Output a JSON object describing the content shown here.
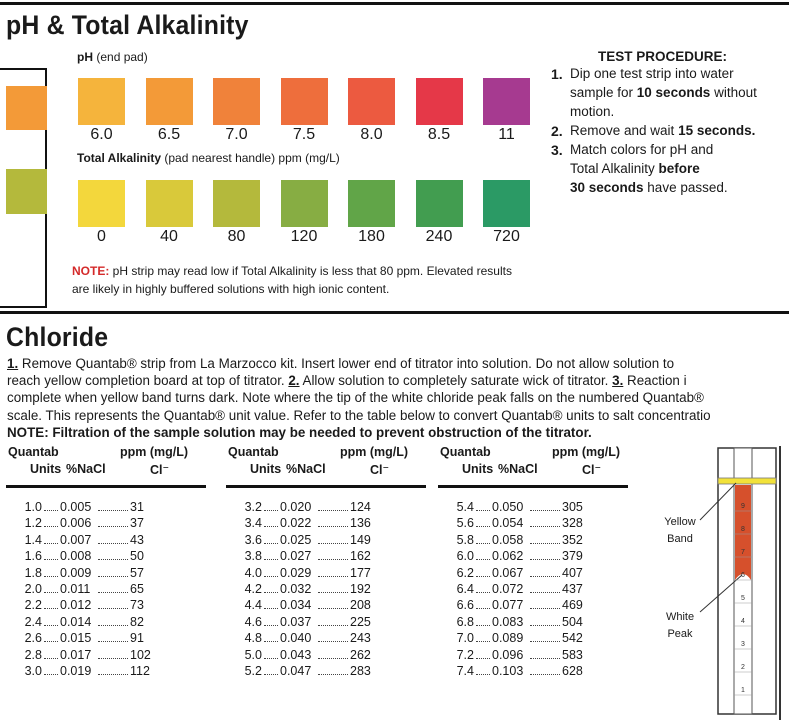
{
  "ph_section": {
    "title": "pH & Total Alkalinity",
    "ph": {
      "label": "pH",
      "label_note": "(end pad)",
      "pads": [
        {
          "label": "6.0",
          "color": "#f5b43c"
        },
        {
          "label": "6.5",
          "color": "#f39a38"
        },
        {
          "label": "7.0",
          "color": "#f0823a"
        },
        {
          "label": "7.5",
          "color": "#ee6e3c"
        },
        {
          "label": "8.0",
          "color": "#ec5a40"
        },
        {
          "label": "8.5",
          "color": "#e53848"
        },
        {
          "label": "11",
          "color": "#a63a90"
        }
      ]
    },
    "alkalinity": {
      "label": "Total Alkalinity",
      "label_note": "(pad nearest handle) ppm (mg/L)",
      "pads": [
        {
          "label": "0",
          "color": "#f3d73c"
        },
        {
          "label": "40",
          "color": "#d9c93a"
        },
        {
          "label": "80",
          "color": "#b4b93c"
        },
        {
          "label": "120",
          "color": "#87ad43"
        },
        {
          "label": "180",
          "color": "#61a548"
        },
        {
          "label": "240",
          "color": "#429d50"
        },
        {
          "label": "720",
          "color": "#2b9a65"
        }
      ]
    },
    "note": [
      [
        {
          "text": "NOTE:",
          "b": true,
          "red": true
        },
        {
          "text": " pH strip may read low if Total Alkalinity is less that 80 ppm. Elevated results"
        }
      ],
      [
        {
          "text": "are likely in highly buffered solutions with high ionic content."
        }
      ]
    ]
  },
  "test_procedure": {
    "heading": "TEST PROCEDURE:",
    "steps": [
      {
        "number": "1.",
        "lines": [
          [
            {
              "text": "Dip one test strip into water"
            }
          ],
          [
            {
              "text": "sample for "
            },
            {
              "text": "10 seconds",
              "b": true
            },
            {
              "text": " without"
            }
          ],
          [
            {
              "text": "motion."
            }
          ]
        ]
      },
      {
        "number": "2.",
        "lines": [
          [
            {
              "text": "Remove and wait "
            },
            {
              "text": "15 seconds.",
              "b": true
            }
          ]
        ]
      },
      {
        "number": "3.",
        "lines": [
          [
            {
              "text": "Match colors for pH and"
            }
          ],
          [
            {
              "text": "Total Alkalinity "
            },
            {
              "text": "before",
              "b": true
            }
          ],
          [
            {
              "text": "30 seconds",
              "b": true
            },
            {
              "text": " have passed."
            }
          ]
        ]
      }
    ]
  },
  "chloride": {
    "title": "Chloride",
    "lines": [
      [
        {
          "text": "1.",
          "b": true,
          "u": true
        },
        {
          "text": " Remove Quantab® strip from La Marzocco kit. Insert lower end of titrator into solution. Do not allow solution to"
        }
      ],
      [
        {
          "text": "reach yellow completion board at top of titrator. "
        },
        {
          "text": "2.",
          "b": true,
          "u": true
        },
        {
          "text": " Allow solution to completely saturate wick of titrator. "
        },
        {
          "text": "3.",
          "b": true,
          "u": true
        },
        {
          "text": " Reaction i"
        }
      ],
      [
        {
          "text": "complete when yellow band turns dark. Note where the tip of the white chloride peak falls on the numbered Quantab®"
        }
      ],
      [
        {
          "text": "scale. This represents the Quantab® unit value. Refer to the table below to convert Quantab® units to salt concentratio"
        }
      ],
      [
        {
          "text": "NOTE: Filtration of the sample solution may be needed to prevent obstruction of the titrator.",
          "b": true
        }
      ]
    ],
    "headers": {
      "quantab": "Quantab",
      "units": "Units",
      "nacl": "%NaCl",
      "ppm": "ppm (mg/L)",
      "cl": "Cl⁻"
    },
    "tables": [
      [
        [
          "1.0",
          "0.005",
          "31"
        ],
        [
          "1.2",
          "0.006",
          "37"
        ],
        [
          "1.4",
          "0.007",
          "43"
        ],
        [
          "1.6",
          "0.008",
          "50"
        ],
        [
          "1.8",
          "0.009",
          "57"
        ],
        [
          "2.0",
          "0.011",
          "65"
        ],
        [
          "2.2",
          "0.012",
          "73"
        ],
        [
          "2.4",
          "0.014",
          "82"
        ],
        [
          "2.6",
          "0.015",
          "91"
        ],
        [
          "2.8",
          "0.017",
          "102"
        ],
        [
          "3.0",
          "0.019",
          "112"
        ]
      ],
      [
        [
          "3.2",
          "0.020",
          "124"
        ],
        [
          "3.4",
          "0.022",
          "136"
        ],
        [
          "3.6",
          "0.025",
          "149"
        ],
        [
          "3.8",
          "0.027",
          "162"
        ],
        [
          "4.0",
          "0.029",
          "177"
        ],
        [
          "4.2",
          "0.032",
          "192"
        ],
        [
          "4.4",
          "0.034",
          "208"
        ],
        [
          "4.6",
          "0.037",
          "225"
        ],
        [
          "4.8",
          "0.040",
          "243"
        ],
        [
          "5.0",
          "0.043",
          "262"
        ],
        [
          "5.2",
          "0.047",
          "283"
        ]
      ],
      [
        [
          "5.4",
          "0.050",
          "305"
        ],
        [
          "5.6",
          "0.054",
          "328"
        ],
        [
          "5.8",
          "0.058",
          "352"
        ],
        [
          "6.0",
          "0.062",
          "379"
        ],
        [
          "6.2",
          "0.067",
          "407"
        ],
        [
          "6.4",
          "0.072",
          "437"
        ],
        [
          "6.6",
          "0.077",
          "469"
        ],
        [
          "6.8",
          "0.083",
          "504"
        ],
        [
          "7.0",
          "0.089",
          "542"
        ],
        [
          "7.2",
          "0.096",
          "583"
        ],
        [
          "7.4",
          "0.103",
          "628"
        ]
      ]
    ],
    "titrator": {
      "yellow_band": "Yellow Band",
      "white_peak": "White Peak",
      "scale": [
        "1",
        "2",
        "3",
        "4",
        "5",
        "6",
        "7",
        "8",
        "9"
      ]
    }
  }
}
